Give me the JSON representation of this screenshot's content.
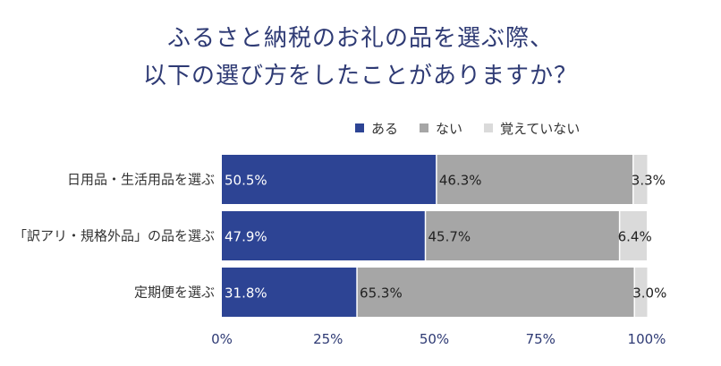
{
  "chart_data": {
    "type": "bar",
    "orientation": "horizontal",
    "stacked": true,
    "title": [
      "ふるさと納税のお礼の品を選ぶ際、",
      "以下の選び方をしたことがありますか？"
    ],
    "categories": [
      "日用品・生活用品を選ぶ",
      "「訳アリ・規格外品」の品を選ぶ",
      "定期便を選ぶ"
    ],
    "series": [
      {
        "name": "ある",
        "values": [
          50.5,
          47.9,
          31.8
        ],
        "labels": [
          "50.5%",
          "47.9%",
          "31.8%"
        ],
        "color": "#2d4494",
        "label_color": "#ffffff"
      },
      {
        "name": "ない",
        "values": [
          46.3,
          45.7,
          65.3
        ],
        "labels": [
          "46.3%",
          "45.7%",
          "65.3%"
        ],
        "color": "#a6a6a6",
        "label_color": "#222222"
      },
      {
        "name": "覚えていない",
        "values": [
          3.3,
          6.4,
          3.0
        ],
        "labels": [
          "3.3%",
          "6.4%",
          "3.0%"
        ],
        "color": "#dadada",
        "label_color": "#222222"
      }
    ],
    "xlim": [
      0,
      100
    ],
    "x_ticks": [
      "0%",
      "25%",
      "50%",
      "75%",
      "100%"
    ],
    "legend_position": "top-right",
    "grid": false
  }
}
